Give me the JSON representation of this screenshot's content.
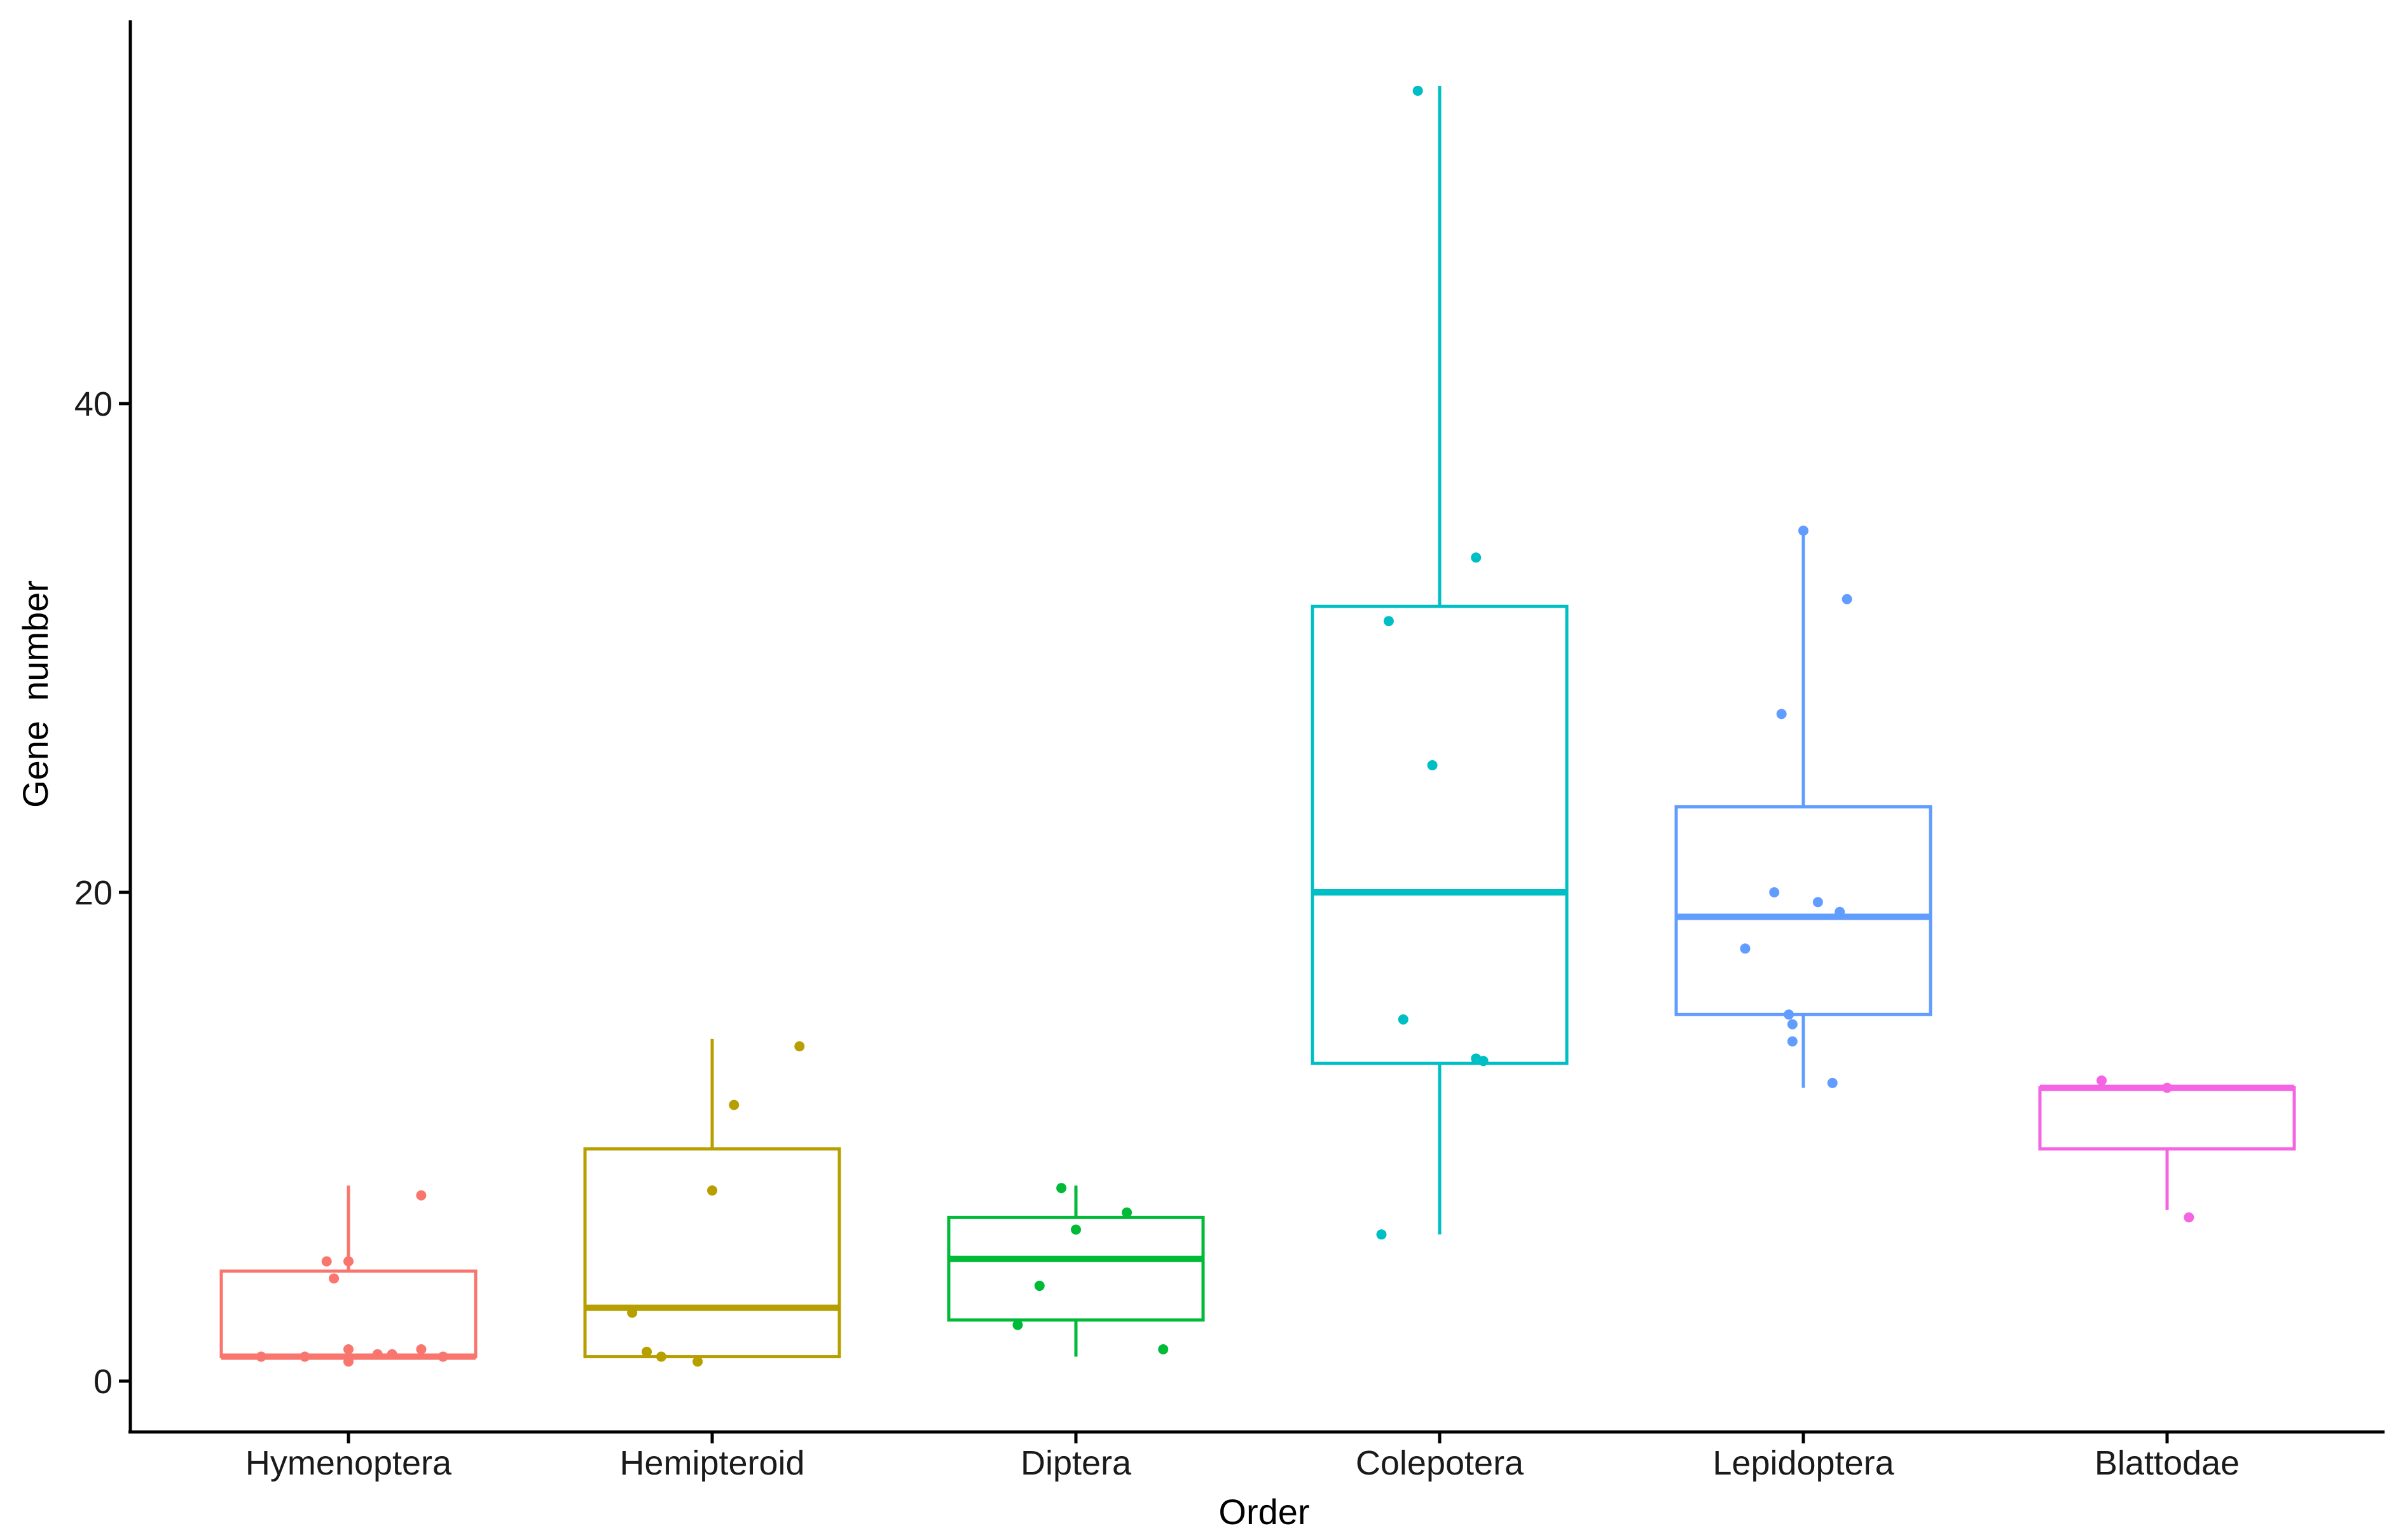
{
  "chart_data": {
    "type": "boxplot",
    "title": "",
    "xlabel": "Order",
    "ylabel": "Gene  number",
    "ylim": [
      -2,
      56
    ],
    "yticks": [
      0,
      20,
      40
    ],
    "ytick_labels": [
      "0",
      "20",
      "40"
    ],
    "grid": false,
    "legend": "none",
    "categories": [
      "Hymenoptera",
      "Hemipteroid",
      "Diptera",
      "Colepotera",
      "Lepidoptera",
      "Blattodae"
    ],
    "colors": [
      "#F8766D",
      "#B79F00",
      "#00BA38",
      "#00BFC4",
      "#619CFF",
      "#F564E3"
    ],
    "boxes": [
      {
        "name": "Hymenoptera",
        "whisker_low": 1,
        "q1": 1,
        "median": 1,
        "q3": 4.5,
        "whisker_high": 8
      },
      {
        "name": "Hemipteroid",
        "whisker_low": 1,
        "q1": 1,
        "median": 3,
        "q3": 9.5,
        "whisker_high": 14
      },
      {
        "name": "Diptera",
        "whisker_low": 1,
        "q1": 2.5,
        "median": 5,
        "q3": 6.7,
        "whisker_high": 8
      },
      {
        "name": "Colepotera",
        "whisker_low": 6,
        "q1": 13,
        "median": 20,
        "q3": 31.7,
        "whisker_high": 53
      },
      {
        "name": "Lepidoptera",
        "whisker_low": 12,
        "q1": 15,
        "median": 19,
        "q3": 23.5,
        "whisker_high": 35
      },
      {
        "name": "Blattodae",
        "whisker_low": 7,
        "q1": 9.5,
        "median": 12,
        "q3": 12,
        "whisker_high": 12
      }
    ],
    "points": [
      [
        [
          -0.24,
          1.0
        ],
        [
          -0.04,
          4.2
        ],
        [
          0.0,
          4.9
        ],
        [
          0.0,
          0.8
        ],
        [
          0.0,
          1.3
        ],
        [
          0.08,
          1.1
        ],
        [
          0.2,
          1.3
        ],
        [
          0.26,
          1.0
        ],
        [
          0.2,
          7.6
        ],
        [
          -0.06,
          4.9
        ],
        [
          0.12,
          1.1
        ],
        [
          -0.12,
          1.0
        ]
      ],
      [
        [
          -0.22,
          2.8
        ],
        [
          -0.18,
          1.2
        ],
        [
          -0.14,
          1.0
        ],
        [
          -0.04,
          0.8
        ],
        [
          0.0,
          7.8
        ],
        [
          0.06,
          11.3
        ],
        [
          0.24,
          13.7
        ]
      ],
      [
        [
          -0.16,
          2.3
        ],
        [
          -0.1,
          3.9
        ],
        [
          -0.04,
          7.9
        ],
        [
          0.0,
          6.2
        ],
        [
          0.14,
          6.9
        ],
        [
          0.24,
          1.3
        ]
      ],
      [
        [
          -0.06,
          52.8
        ],
        [
          -0.16,
          6.0
        ],
        [
          -0.14,
          31.1
        ],
        [
          -0.1,
          14.8
        ],
        [
          -0.02,
          25.2
        ],
        [
          0.1,
          33.7
        ],
        [
          0.1,
          13.2
        ],
        [
          0.12,
          13.1
        ]
      ],
      [
        [
          -0.16,
          17.7
        ],
        [
          -0.08,
          20.0
        ],
        [
          -0.06,
          27.3
        ],
        [
          -0.04,
          15.0
        ],
        [
          -0.03,
          14.6
        ],
        [
          -0.03,
          13.9
        ],
        [
          0.0,
          34.8
        ],
        [
          0.04,
          19.6
        ],
        [
          0.08,
          12.2
        ],
        [
          0.1,
          19.2
        ],
        [
          0.12,
          32.0
        ]
      ],
      [
        [
          -0.18,
          12.3
        ],
        [
          0.0,
          12.0
        ],
        [
          0.06,
          6.7
        ]
      ]
    ]
  }
}
